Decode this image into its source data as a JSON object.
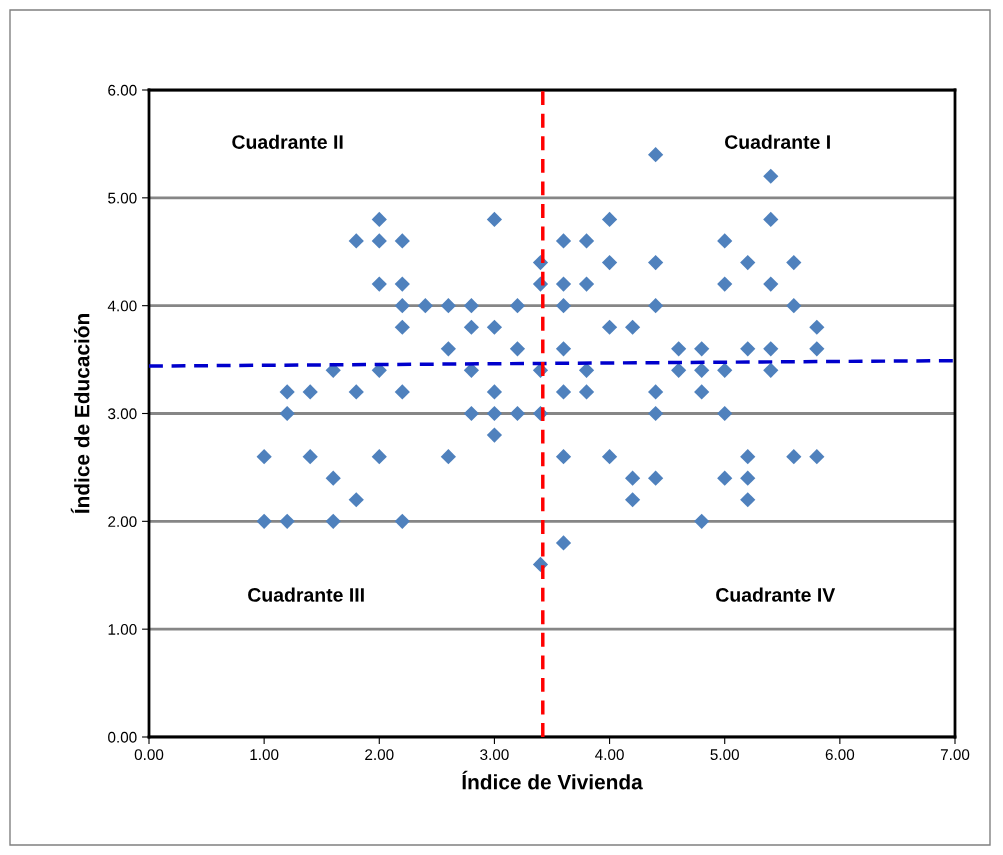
{
  "chart_data": {
    "type": "scatter",
    "xlabel": "Índice de Vivienda",
    "ylabel": "Índice de Educación",
    "xlim": [
      0,
      7
    ],
    "ylim": [
      0,
      6
    ],
    "xticks": [
      {
        "value": 0,
        "label": "0.00"
      },
      {
        "value": 1,
        "label": "1.00"
      },
      {
        "value": 2,
        "label": "2.00"
      },
      {
        "value": 3,
        "label": "3.00"
      },
      {
        "value": 4,
        "label": "4.00"
      },
      {
        "value": 5,
        "label": "5.00"
      },
      {
        "value": 6,
        "label": "6.00"
      },
      {
        "value": 7,
        "label": "7.00"
      }
    ],
    "yticks": [
      {
        "value": 0,
        "label": "0.00"
      },
      {
        "value": 1,
        "label": "1.00"
      },
      {
        "value": 2,
        "label": "2.00"
      },
      {
        "value": 3,
        "label": "3.00"
      },
      {
        "value": 4,
        "label": "4.00"
      },
      {
        "value": 5,
        "label": "5.00"
      },
      {
        "value": 6,
        "label": "6.00"
      }
    ],
    "grid": "y",
    "legend": false,
    "marker": "diamond",
    "series": [
      {
        "color": "#4f81bd",
        "x": [
          1.0,
          1.0,
          1.2,
          1.2,
          1.2,
          1.4,
          1.4,
          1.6,
          1.6,
          1.6,
          1.8,
          1.8,
          1.8,
          2.0,
          2.0,
          2.0,
          2.0,
          2.0,
          2.2,
          2.2,
          2.2,
          2.2,
          2.2,
          2.2,
          2.4,
          2.6,
          2.6,
          2.6,
          2.8,
          2.8,
          2.8,
          2.8,
          3.0,
          3.0,
          3.0,
          3.0,
          3.0,
          3.2,
          3.2,
          3.2,
          3.4,
          3.4,
          3.4,
          3.4,
          3.4,
          3.6,
          3.6,
          3.6,
          3.6,
          3.6,
          3.6,
          3.6,
          3.8,
          3.8,
          3.8,
          3.8,
          4.0,
          4.0,
          4.0,
          4.0,
          4.2,
          4.2,
          4.2,
          4.4,
          4.4,
          4.4,
          4.4,
          4.4,
          4.4,
          4.6,
          4.6,
          4.8,
          4.8,
          4.8,
          4.8,
          5.0,
          5.0,
          5.0,
          5.0,
          5.0,
          5.2,
          5.2,
          5.2,
          5.2,
          5.2,
          5.4,
          5.4,
          5.4,
          5.4,
          5.4,
          5.6,
          5.6,
          5.6,
          5.8,
          5.8,
          5.8
        ],
        "values": [
          2.6,
          2.0,
          3.2,
          3.0,
          2.0,
          3.2,
          2.6,
          3.4,
          2.4,
          2.0,
          4.6,
          3.2,
          2.2,
          4.8,
          4.6,
          4.2,
          3.4,
          2.6,
          4.6,
          4.2,
          4.0,
          3.8,
          3.2,
          2.0,
          4.0,
          4.0,
          3.6,
          2.6,
          4.0,
          3.8,
          3.4,
          3.0,
          4.8,
          3.8,
          3.2,
          3.0,
          2.8,
          4.0,
          3.6,
          3.0,
          4.4,
          4.2,
          3.4,
          3.0,
          1.6,
          4.6,
          4.2,
          4.0,
          3.6,
          3.2,
          2.6,
          1.8,
          4.6,
          4.2,
          3.4,
          3.2,
          4.8,
          4.4,
          3.8,
          2.6,
          3.8,
          2.4,
          2.2,
          5.4,
          4.4,
          4.0,
          3.2,
          3.0,
          2.4,
          3.6,
          3.4,
          3.6,
          3.4,
          3.2,
          2.0,
          4.6,
          4.2,
          3.4,
          3.0,
          2.4,
          4.4,
          3.6,
          2.6,
          2.4,
          2.2,
          5.2,
          4.8,
          4.2,
          3.6,
          3.4,
          4.4,
          4.0,
          2.6,
          3.8,
          3.6,
          2.6
        ]
      },
      {
        "type": "line",
        "color": "#0000cc",
        "line_style": "dashed",
        "marker": "none",
        "x": [
          0,
          7
        ],
        "values": [
          3.44,
          3.49
        ]
      }
    ],
    "ref_lines": [
      {
        "axis": "x",
        "value": 3.42,
        "color": "#ff0000",
        "line_style": "dashed"
      }
    ],
    "annotations": [
      "Cuadrante II",
      "Cuadrante I",
      "Cuadrante III",
      "Cuadrante IV"
    ]
  }
}
